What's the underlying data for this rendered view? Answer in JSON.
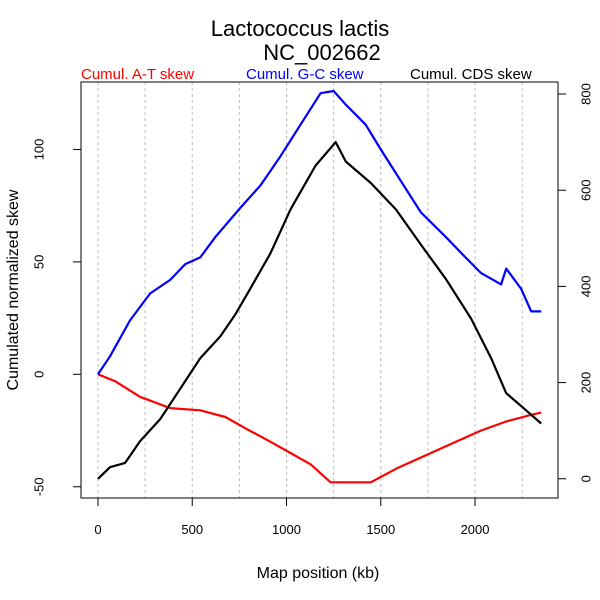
{
  "chart_data": {
    "type": "line",
    "title": "Lactococcus lactis",
    "subtitle": "NC_002662",
    "xlabel": "Map position (kb)",
    "ylabel": "Cumulated normalized skew",
    "xlim": [
      -90,
      2440
    ],
    "ylim": [
      -55,
      130
    ],
    "y2lim": [
      -40,
      825
    ],
    "x_ticks": [
      "0",
      "500",
      "1000",
      "1500",
      "2000"
    ],
    "x_tick_values": [
      0,
      500,
      1000,
      1500,
      2000
    ],
    "y_ticks": [
      "-50",
      "0",
      "50",
      "100"
    ],
    "y_tick_values": [
      -50,
      0,
      50,
      100
    ],
    "y2_ticks": [
      "0",
      "200",
      "400",
      "600",
      "800"
    ],
    "y2_tick_values": [
      0,
      200,
      400,
      600,
      800
    ],
    "grid": {
      "x_dashed_every_kb": 250
    },
    "legend_position": "top",
    "series": [
      {
        "name": "Cumul. A-T skew",
        "color": "#ff0000",
        "axis": "left",
        "x": [
          0,
          90,
          223,
          383,
          543,
          676,
          782,
          915,
          1021,
          1128,
          1234,
          1340,
          1447,
          1580,
          1713,
          1872,
          2032,
          2165,
          2298,
          2351
        ],
        "y": [
          0,
          -3,
          -10,
          -15,
          -16,
          -19,
          -24,
          -30,
          -35,
          -40,
          -48,
          -48,
          -48,
          -42,
          -37,
          -31,
          -25,
          -21,
          -18,
          -17
        ]
      },
      {
        "name": "Cumul. G-C skew",
        "color": "#0000ff",
        "axis": "left",
        "x": [
          0,
          64,
          170,
          277,
          383,
          463,
          543,
          622,
          755,
          862,
          968,
          1074,
          1181,
          1250,
          1314,
          1420,
          1500,
          1606,
          1713,
          1846,
          1926,
          2032,
          2138,
          2165,
          2245,
          2298,
          2351
        ],
        "y": [
          0,
          8,
          24,
          36,
          42,
          49,
          52,
          61,
          74,
          84,
          97,
          111,
          125,
          126,
          120,
          111,
          100,
          86,
          72,
          61,
          54,
          45,
          40,
          47,
          38,
          28,
          28
        ]
      },
      {
        "name": "Cumul. CDS skew",
        "color": "#000000",
        "axis": "right",
        "x": [
          0,
          64,
          144,
          223,
          330,
          436,
          543,
          649,
          729,
          809,
          915,
          1021,
          1154,
          1261,
          1314,
          1447,
          1580,
          1713,
          1846,
          1979,
          2085,
          2165,
          2245,
          2298,
          2351
        ],
        "y": [
          0,
          24,
          33,
          78,
          124,
          187,
          251,
          296,
          342,
          396,
          469,
          560,
          651,
          700,
          660,
          615,
          560,
          487,
          415,
          333,
          251,
          178,
          151,
          133,
          115
        ]
      }
    ]
  }
}
